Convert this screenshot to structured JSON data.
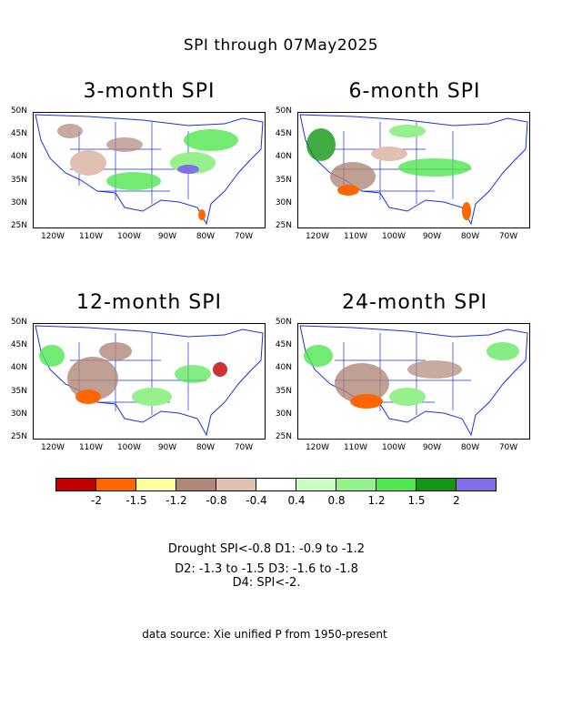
{
  "title": "SPI through 07May2025",
  "panels": [
    {
      "title": "3-month SPI"
    },
    {
      "title": "6-month SPI"
    },
    {
      "title": "12-month SPI"
    },
    {
      "title": "24-month SPI"
    }
  ],
  "lat_ticks": [
    "50N",
    "45N",
    "40N",
    "35N",
    "30N",
    "25N"
  ],
  "lon_ticks": [
    "120W",
    "110W",
    "100W",
    "90W",
    "80W",
    "70W"
  ],
  "legend": {
    "colors": [
      "#c00000",
      "#ff6600",
      "#ffffa0",
      "#b08878",
      "#e0c0b0",
      "#ffffff",
      "#c8ffc0",
      "#96f08c",
      "#50e650",
      "#149614",
      "#8070e8"
    ],
    "labels": [
      "-2",
      "-1.5",
      "-1.2",
      "-0.8",
      "-0.4",
      "0.4",
      "0.8",
      "1.2",
      "1.5",
      "2"
    ]
  },
  "notes": {
    "line1": "Drought SPI<-0.8 D1: -0.9 to -1.2",
    "line2": "D2: -1.3 to -1.5 D3: -1.6 to -1.8",
    "line3": "D4: SPI<-2.",
    "source": "data source: Xie unified P from 1950-present"
  }
}
